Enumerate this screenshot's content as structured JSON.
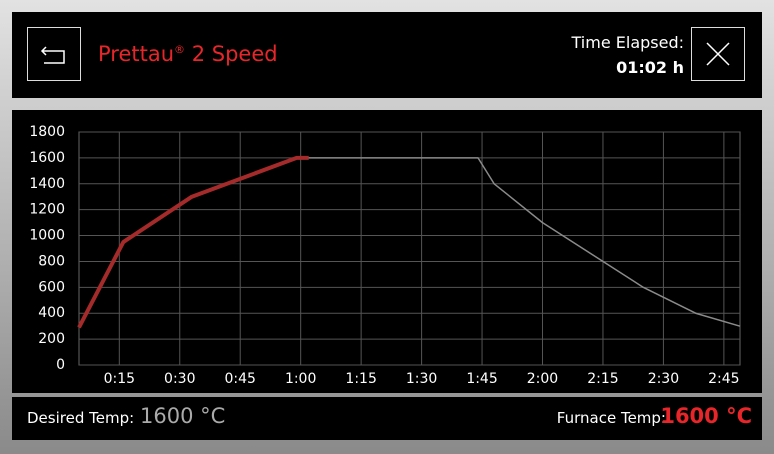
{
  "header": {
    "title_main": "Prettau",
    "title_mark": "®",
    "title_suffix": " 2 Speed",
    "time_label": "Time Elapsed:",
    "time_value": "01:02 h"
  },
  "chart_data": {
    "type": "line",
    "xlim": [
      5,
      169
    ],
    "ylim": [
      0,
      1800
    ],
    "yticks": [
      0,
      200,
      400,
      600,
      800,
      1000,
      1200,
      1400,
      1600,
      1800
    ],
    "xticks": [
      {
        "value": 15,
        "label": "0:15"
      },
      {
        "value": 30,
        "label": "0:30"
      },
      {
        "value": 45,
        "label": "0:45"
      },
      {
        "value": 60,
        "label": "1:00"
      },
      {
        "value": 75,
        "label": "1:15"
      },
      {
        "value": 90,
        "label": "1:30"
      },
      {
        "value": 105,
        "label": "1:45"
      },
      {
        "value": 120,
        "label": "2:00"
      },
      {
        "value": 135,
        "label": "2:15"
      },
      {
        "value": 150,
        "label": "2:30"
      },
      {
        "value": 165,
        "label": "2:45"
      }
    ],
    "grid": true,
    "series": [
      {
        "color": "#8a8a8a",
        "x": [
          5,
          16,
          33,
          59,
          104,
          108,
          120,
          145,
          158,
          169
        ],
        "values": [
          290,
          950,
          1300,
          1600,
          1600,
          1400,
          1100,
          600,
          400,
          300
        ]
      },
      {
        "color": "#a52a2a",
        "x": [
          5,
          16,
          33,
          59,
          62
        ],
        "values": [
          290,
          950,
          1300,
          1600,
          1600
        ]
      }
    ]
  },
  "footer": {
    "desired_label": "Desired Temp:",
    "desired_value": "1600 °C",
    "furnace_label": "Furnace Temp:",
    "furnace_value": "1600 °C"
  }
}
